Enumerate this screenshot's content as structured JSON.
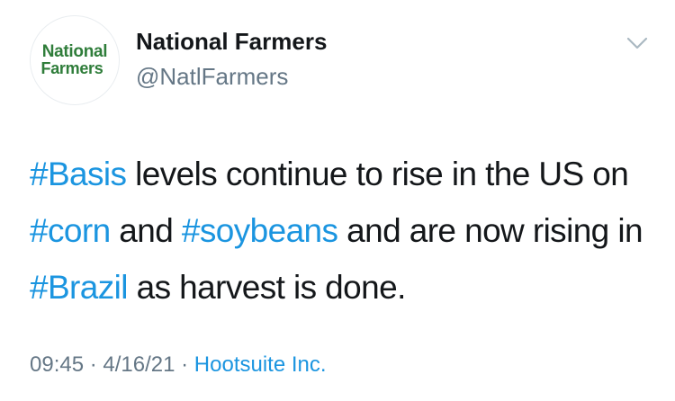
{
  "tweet": {
    "author": {
      "name": "National Farmers",
      "handle": "@NatlFarmers",
      "logo_line1": "National",
      "logo_line2": "Farmers"
    },
    "text_parts": {
      "t1": "#Basis",
      "t2": " levels continue to rise in the US on ",
      "t3": "#corn",
      "t4": " and ",
      "t5": "#soybeans",
      "t6": " and are now rising in ",
      "t7": "#Brazil",
      "t8": " as harvest is done."
    },
    "time": "09:45",
    "separator": " · ",
    "date": "4/16/21",
    "source": "Hootsuite Inc."
  },
  "colors": {
    "hashtag": "#1b95e0",
    "logo_green": "#2f7d3a",
    "meta_gray": "#657786"
  },
  "icons": {
    "menu": "chevron-down-icon"
  }
}
